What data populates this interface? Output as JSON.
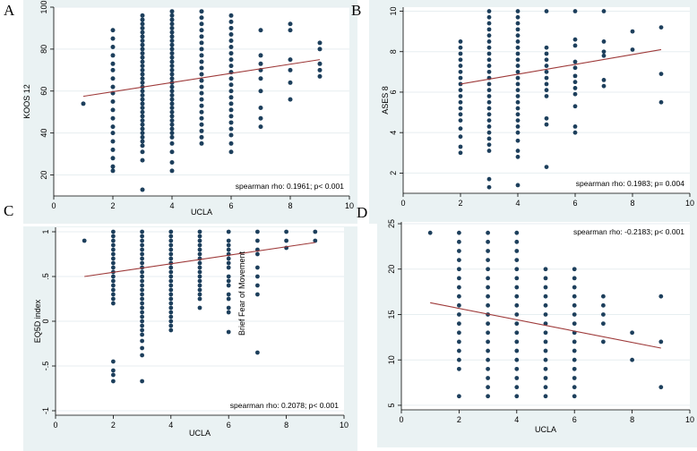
{
  "panels": [
    {
      "letter": "A",
      "chart_data": {
        "type": "scatter",
        "title": "",
        "xlabel": "UCLA",
        "ylabel": "KOOS 12",
        "xlim": [
          0,
          10
        ],
        "ylim": [
          10,
          100
        ],
        "xticks": [
          0,
          2,
          4,
          6,
          8,
          10
        ],
        "yticks": [
          20,
          40,
          60,
          80,
          100
        ],
        "ytick_labels": [
          "20",
          "40",
          "60",
          "80",
          "100"
        ],
        "annotation": "spearman rho: 0.1961; p< 0.001",
        "annotation_pos": "bottom-right",
        "fit_line": {
          "x": [
            1,
            9
          ],
          "y": [
            57.5,
            75
          ]
        },
        "scatter_groups": [
          {
            "x": 1,
            "y": [
              54
            ]
          },
          {
            "x": 2,
            "y": [
              89,
              85,
              81,
              77,
              73,
              70,
              66,
              62,
              59,
              55,
              51,
              47,
              43,
              40,
              36,
              32,
              28,
              24,
              22
            ]
          },
          {
            "x": 3,
            "y": [
              96,
              94,
              92,
              90,
              88,
              86,
              84,
              82,
              80,
              78,
              76,
              74,
              72,
              70,
              68,
              66,
              64,
              62,
              60,
              58,
              56,
              54,
              52,
              50,
              48,
              46,
              44,
              42,
              40,
              38,
              36,
              34,
              31,
              27,
              13
            ]
          },
          {
            "x": 4,
            "y": [
              98,
              96,
              94,
              92,
              90,
              88,
              86,
              84,
              82,
              80,
              78,
              76,
              74,
              72,
              70,
              68,
              66,
              64,
              62,
              60,
              58,
              56,
              54,
              52,
              50,
              48,
              46,
              44,
              42,
              40,
              38,
              35,
              31,
              26,
              22
            ]
          },
          {
            "x": 5,
            "y": [
              98,
              95,
              92,
              89,
              86,
              83,
              80,
              77,
              74,
              71,
              68,
              65,
              62,
              59,
              56,
              53,
              50,
              47,
              44,
              41,
              38,
              35
            ]
          },
          {
            "x": 6,
            "y": [
              96,
              93,
              90,
              87,
              84,
              81,
              78,
              75,
              72,
              69,
              66,
              63,
              60,
              57,
              54,
              51,
              48,
              45,
              42,
              39,
              35,
              31
            ]
          },
          {
            "x": 7,
            "y": [
              89,
              77,
              73,
              70,
              66,
              60,
              52,
              47,
              43
            ]
          },
          {
            "x": 8,
            "y": [
              92,
              89,
              75,
              70,
              64,
              56
            ]
          },
          {
            "x": 9,
            "y": [
              83,
              80,
              73,
              70,
              67
            ]
          }
        ]
      }
    },
    {
      "letter": "B",
      "chart_data": {
        "type": "scatter",
        "title": "",
        "xlabel": "",
        "ylabel": "ASES 8",
        "xlim": [
          0,
          10
        ],
        "ylim": [
          1,
          10.2
        ],
        "xticks": [
          0,
          2,
          4,
          6,
          8,
          10
        ],
        "yticks": [
          2,
          4,
          6,
          8,
          10
        ],
        "ytick_labels": [
          "2",
          "4",
          "6",
          "8",
          "10"
        ],
        "annotation": "spearman rho: 0.1983; p= 0.004",
        "annotation_pos": "bottom-right",
        "fit_line": {
          "x": [
            2,
            9
          ],
          "y": [
            6.4,
            8.1
          ]
        },
        "scatter_groups": [
          {
            "x": 2,
            "y": [
              8.5,
              8.2,
              7.9,
              7.6,
              7.3,
              7.0,
              6.7,
              6.4,
              6.1,
              5.8,
              5.5,
              5.2,
              4.9,
              4.6,
              4.2,
              3.8,
              3.3,
              3.0
            ]
          },
          {
            "x": 3,
            "y": [
              10.0,
              9.7,
              9.4,
              9.1,
              8.8,
              8.5,
              8.2,
              7.9,
              7.6,
              7.3,
              7.0,
              6.7,
              6.4,
              6.1,
              5.8,
              5.5,
              5.2,
              4.9,
              4.6,
              4.3,
              4.0,
              3.7,
              3.4,
              3.1,
              1.7,
              1.3
            ]
          },
          {
            "x": 4,
            "y": [
              10.0,
              9.7,
              9.4,
              9.1,
              8.8,
              8.5,
              8.2,
              7.9,
              7.6,
              7.3,
              7.0,
              6.7,
              6.4,
              6.1,
              5.8,
              5.5,
              5.2,
              4.9,
              4.6,
              4.3,
              4.0,
              3.6,
              3.1,
              2.8,
              1.4
            ]
          },
          {
            "x": 5,
            "y": [
              10.0,
              8.2,
              7.9,
              7.6,
              7.3,
              7.0,
              6.7,
              6.4,
              6.1,
              5.8,
              4.7,
              4.4,
              2.3
            ]
          },
          {
            "x": 6,
            "y": [
              10.0,
              8.6,
              8.3,
              7.5,
              7.2,
              6.8,
              6.5,
              6.2,
              5.9,
              5.3,
              4.3,
              4.0
            ]
          },
          {
            "x": 7,
            "y": [
              10.0,
              8.5,
              8.0,
              7.8,
              6.6,
              6.3
            ]
          },
          {
            "x": 8,
            "y": [
              9.0,
              8.1
            ]
          },
          {
            "x": 9,
            "y": [
              9.2,
              6.9,
              5.5
            ]
          }
        ]
      }
    },
    {
      "letter": "C",
      "chart_data": {
        "type": "scatter",
        "title": "",
        "xlabel": "UCLA",
        "ylabel": "EQ5D index",
        "xlim": [
          0,
          10
        ],
        "ylim": [
          -1.05,
          1.05
        ],
        "xticks": [
          0,
          2,
          4,
          6,
          8,
          10
        ],
        "yticks": [
          -1,
          -0.5,
          0,
          0.5,
          1
        ],
        "ytick_labels": [
          "-1",
          "-.5",
          "0",
          ".5",
          "1"
        ],
        "annotation": "spearman rho: 0.2078; p< 0.001",
        "annotation_pos": "bottom-right",
        "overlay_label": "Brief Fear of Movement",
        "fit_line": {
          "x": [
            1,
            9
          ],
          "y": [
            0.5,
            0.88
          ]
        },
        "scatter_groups": [
          {
            "x": 1,
            "y": [
              0.9
            ]
          },
          {
            "x": 2,
            "y": [
              1.0,
              0.95,
              0.9,
              0.85,
              0.8,
              0.75,
              0.7,
              0.65,
              0.6,
              0.55,
              0.5,
              0.45,
              0.4,
              0.35,
              0.3,
              0.25,
              0.2,
              -0.45,
              -0.55,
              -0.6,
              -0.67
            ]
          },
          {
            "x": 3,
            "y": [
              1.0,
              0.95,
              0.9,
              0.85,
              0.8,
              0.75,
              0.7,
              0.65,
              0.6,
              0.55,
              0.5,
              0.45,
              0.4,
              0.35,
              0.3,
              0.25,
              0.2,
              0.15,
              0.1,
              0.05,
              0.0,
              -0.05,
              -0.1,
              -0.15,
              -0.22,
              -0.3,
              -0.38,
              -0.67
            ]
          },
          {
            "x": 4,
            "y": [
              1.0,
              0.95,
              0.9,
              0.85,
              0.8,
              0.75,
              0.7,
              0.65,
              0.6,
              0.55,
              0.5,
              0.45,
              0.4,
              0.35,
              0.3,
              0.25,
              0.2,
              0.15,
              0.1,
              0.05,
              0.0,
              -0.05,
              -0.1
            ]
          },
          {
            "x": 5,
            "y": [
              1.0,
              0.95,
              0.9,
              0.85,
              0.8,
              0.75,
              0.7,
              0.65,
              0.6,
              0.55,
              0.5,
              0.45,
              0.4,
              0.35,
              0.3,
              0.25,
              0.15
            ]
          },
          {
            "x": 6,
            "y": [
              1.0,
              0.9,
              0.85,
              0.8,
              0.75,
              0.7,
              0.65,
              0.6,
              0.5,
              0.45,
              0.4,
              0.3,
              0.25,
              0.15,
              0.1,
              -0.12
            ]
          },
          {
            "x": 7,
            "y": [
              1.0,
              0.9,
              0.8,
              0.75,
              0.6,
              0.5,
              0.4,
              0.3,
              -0.35
            ]
          },
          {
            "x": 8,
            "y": [
              1.0,
              0.9,
              0.82
            ]
          },
          {
            "x": 9,
            "y": [
              1.0,
              0.9
            ]
          }
        ]
      }
    },
    {
      "letter": "D",
      "chart_data": {
        "type": "scatter",
        "title": "",
        "xlabel": "UCLA",
        "ylabel": "",
        "xlim": [
          0,
          10
        ],
        "ylim": [
          4.5,
          25.2
        ],
        "xticks": [
          0,
          2,
          4,
          6,
          8,
          10
        ],
        "yticks": [
          5,
          10,
          15,
          20,
          25
        ],
        "ytick_labels": [
          "5",
          "10",
          "15",
          "20",
          "25"
        ],
        "annotation": "spearman rho: -0.2183; p< 0.001",
        "annotation_pos": "top-right",
        "fit_line": {
          "x": [
            1,
            9
          ],
          "y": [
            16.3,
            11.3
          ]
        },
        "scatter_groups": [
          {
            "x": 1,
            "y": [
              24
            ]
          },
          {
            "x": 2,
            "y": [
              24,
              23,
              22,
              21,
              20,
              19,
              18,
              17,
              16,
              15,
              14,
              13,
              12,
              11,
              10,
              9,
              6
            ]
          },
          {
            "x": 3,
            "y": [
              24,
              23,
              22,
              21,
              20,
              19,
              18,
              17,
              16,
              15,
              14,
              13,
              12,
              11,
              10,
              9,
              8,
              7,
              6
            ]
          },
          {
            "x": 4,
            "y": [
              24,
              23,
              22,
              21,
              20,
              19,
              18,
              17,
              16,
              15,
              14,
              13,
              12,
              11,
              10,
              9,
              8,
              7,
              6
            ]
          },
          {
            "x": 5,
            "y": [
              20,
              19,
              18,
              17,
              16,
              15,
              14,
              13,
              12,
              11,
              10,
              9,
              8,
              7,
              6
            ]
          },
          {
            "x": 6,
            "y": [
              20,
              19,
              18,
              17,
              16,
              15,
              14,
              13,
              12,
              11,
              10,
              9,
              8,
              7,
              6
            ]
          },
          {
            "x": 7,
            "y": [
              17,
              16,
              15,
              14,
              12
            ]
          },
          {
            "x": 8,
            "y": [
              13,
              10
            ]
          },
          {
            "x": 9,
            "y": [
              17,
              12,
              7
            ]
          }
        ]
      }
    }
  ]
}
